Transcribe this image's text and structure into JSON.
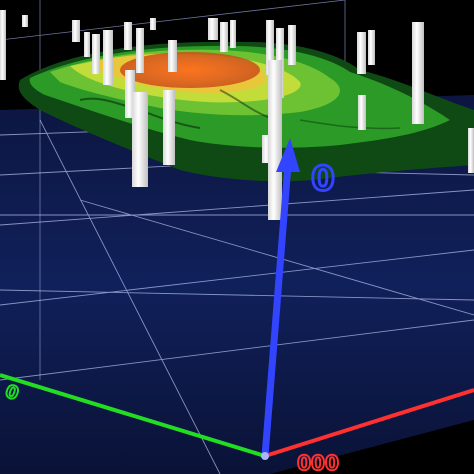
{
  "scene": {
    "background_color": "#000000",
    "floor_color": "#0f1d4d",
    "grid_color": "#c8d2ff",
    "surface_colors": [
      "#0d3d12",
      "#2faa2a",
      "#9ad637",
      "#e8d23a",
      "#e55a1f"
    ],
    "well_color": "#ffffff",
    "axes": {
      "x": {
        "color": "#ff3030",
        "label": "000"
      },
      "y": {
        "color": "#3344ff",
        "label": "0"
      },
      "z": {
        "color": "#22dd22",
        "label": "0"
      }
    }
  }
}
